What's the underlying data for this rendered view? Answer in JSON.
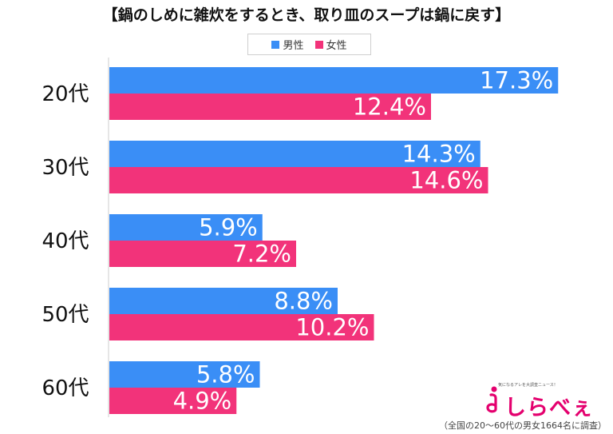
{
  "page": {
    "title": "【鍋のしめに雑炊をするとき、取り皿のスープは鍋に戻す】"
  },
  "legend": {
    "items": [
      "男性",
      "女性"
    ]
  },
  "colors": {
    "male": "#3a8ef6",
    "female": "#f2337a",
    "axis": "#cccccc"
  },
  "chart_data": {
    "type": "bar",
    "orientation": "horizontal",
    "title": "【鍋のしめに雑炊をするとき、取り皿のスープは鍋に戻す】",
    "categories": [
      "20代",
      "30代",
      "40代",
      "50代",
      "60代"
    ],
    "series": [
      {
        "name": "男性",
        "values": [
          17.3,
          14.3,
          5.9,
          8.8,
          5.8
        ],
        "labels": [
          "17.3%",
          "14.3%",
          "5.9%",
          "8.8%",
          "5.8%"
        ]
      },
      {
        "name": "女性",
        "values": [
          12.4,
          14.6,
          7.2,
          10.2,
          4.9
        ],
        "labels": [
          "12.4%",
          "14.6%",
          "7.2%",
          "10.2%",
          "4.9%"
        ]
      }
    ],
    "xlim": [
      0,
      20
    ],
    "legend_position": "top-center",
    "grid": false
  },
  "logo": {
    "tagline": "気になるアレを大調査ニュース！",
    "text": "しらべぇ"
  },
  "source": "（全国の20〜60代の男女1664名に調査）"
}
